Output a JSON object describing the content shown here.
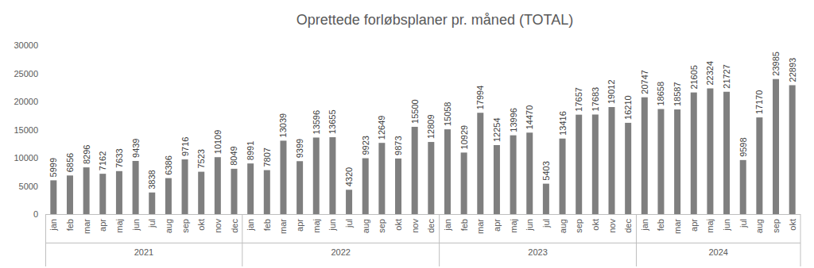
{
  "chart_data": {
    "type": "bar",
    "title": "Oprettede forløbsplaner pr. måned (TOTAL)",
    "categories": [
      "jan",
      "feb",
      "mar",
      "apr",
      "maj",
      "jun",
      "jul",
      "aug",
      "sep",
      "okt",
      "nov",
      "dec",
      "jan",
      "feb",
      "mar",
      "apr",
      "maj",
      "jun",
      "jul",
      "aug",
      "sep",
      "okt",
      "nov",
      "dec",
      "jan",
      "feb",
      "mar",
      "apr",
      "maj",
      "jun",
      "jul",
      "aug",
      "sep",
      "okt",
      "nov",
      "dec",
      "jan",
      "feb",
      "mar",
      "apr",
      "maj",
      "jun",
      "jul",
      "aug",
      "sep",
      "okt"
    ],
    "groups": [
      {
        "label": "2021",
        "count": 12
      },
      {
        "label": "2022",
        "count": 12
      },
      {
        "label": "2023",
        "count": 12
      },
      {
        "label": "2024",
        "count": 10
      }
    ],
    "values": [
      5999,
      6856,
      8296,
      7162,
      7633,
      9439,
      3838,
      6386,
      9716,
      7523,
      10109,
      8049,
      8991,
      7807,
      13039,
      9399,
      13596,
      13655,
      4320,
      9923,
      12649,
      9873,
      15500,
      12809,
      15058,
      10929,
      17994,
      12254,
      13996,
      14470,
      5403,
      13416,
      17657,
      17683,
      19012,
      16210,
      20747,
      18658,
      18587,
      21605,
      22324,
      21727,
      9598,
      17170,
      23985,
      22893
    ],
    "color": "#7f7f7f",
    "ylim": [
      0,
      30000
    ],
    "yticks": [
      0,
      5000,
      10000,
      15000,
      20000,
      25000,
      30000
    ],
    "grid": false,
    "data_labels": true
  }
}
